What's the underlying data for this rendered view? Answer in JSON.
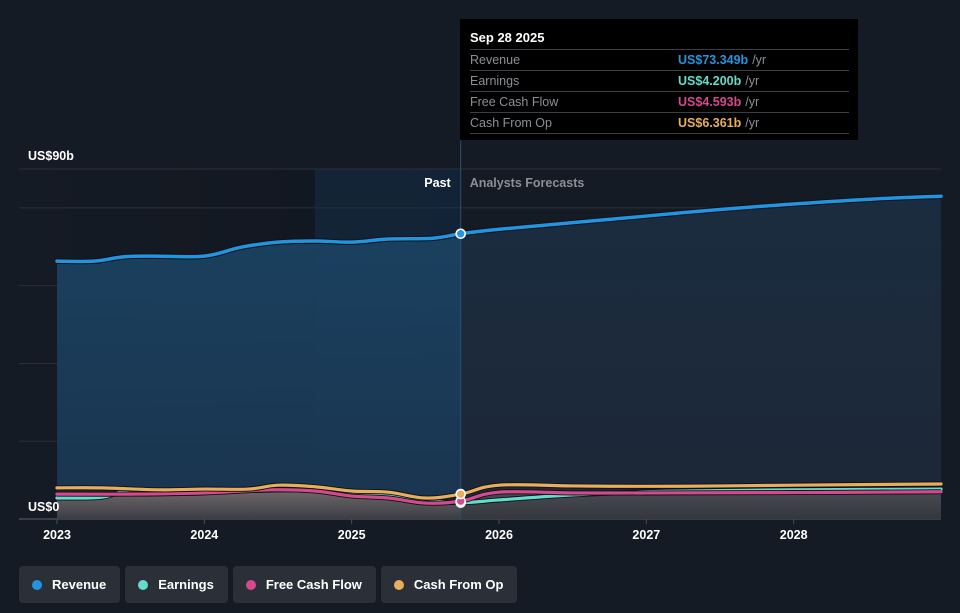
{
  "tooltip": {
    "date": "Sep 28 2025",
    "rows": [
      {
        "label": "Revenue",
        "value": "US$73.349b",
        "unit": "/yr",
        "color": "#2394df"
      },
      {
        "label": "Earnings",
        "value": "US$4.200b",
        "unit": "/yr",
        "color": "#63dccb"
      },
      {
        "label": "Free Cash Flow",
        "value": "US$4.593b",
        "unit": "/yr",
        "color": "#d44a8c"
      },
      {
        "label": "Cash From Op",
        "value": "US$6.361b",
        "unit": "/yr",
        "color": "#e8ae5c"
      }
    ]
  },
  "regions": {
    "past": "Past",
    "forecast": "Analysts Forecasts"
  },
  "chart_data": {
    "type": "area",
    "title": "",
    "xlabel": "",
    "ylabel": "",
    "y_tick_labels": [
      "US$0",
      "US$90b"
    ],
    "x_tick_labels": [
      "2023",
      "2024",
      "2025",
      "2026",
      "2027",
      "2028"
    ],
    "ylim": [
      0,
      90
    ],
    "xlim": [
      2023.0,
      2029.0
    ],
    "grid": true,
    "gridlines": [
      0,
      20,
      40,
      60,
      80,
      90
    ],
    "past_forecast_split": 2025.74,
    "highlight_range": [
      2024.75,
      2025.74
    ],
    "legend_position": "bottom-left",
    "units": "US$ billions",
    "series": [
      {
        "name": "Revenue",
        "color": "#2394df",
        "points": [
          [
            2023.0,
            66.3
          ],
          [
            2023.25,
            66.3
          ],
          [
            2023.45,
            67.4
          ],
          [
            2023.65,
            67.6
          ],
          [
            2024.0,
            67.6
          ],
          [
            2024.25,
            69.9
          ],
          [
            2024.5,
            71.2
          ],
          [
            2024.75,
            71.5
          ],
          [
            2025.0,
            71.2
          ],
          [
            2025.25,
            72.0
          ],
          [
            2025.55,
            72.2
          ],
          [
            2025.74,
            73.35
          ],
          [
            2026.0,
            74.5
          ],
          [
            2026.5,
            76.2
          ],
          [
            2027.0,
            77.9
          ],
          [
            2027.5,
            79.6
          ],
          [
            2028.0,
            81.0
          ],
          [
            2028.5,
            82.2
          ],
          [
            2029.0,
            83.0
          ]
        ]
      },
      {
        "name": "Earnings",
        "color": "#63dccb",
        "points": [
          [
            2023.0,
            5.4
          ],
          [
            2023.3,
            5.6
          ],
          [
            2023.5,
            7.2
          ],
          [
            2024.0,
            7.0
          ],
          [
            2024.5,
            7.5
          ],
          [
            2024.75,
            7.3
          ],
          [
            2025.0,
            6.4
          ],
          [
            2025.25,
            6.2
          ],
          [
            2025.5,
            4.9
          ],
          [
            2025.74,
            4.2
          ],
          [
            2026.0,
            4.9
          ],
          [
            2026.5,
            6.2
          ],
          [
            2027.0,
            7.0
          ],
          [
            2027.5,
            7.3
          ],
          [
            2028.0,
            7.5
          ],
          [
            2029.0,
            7.7
          ]
        ]
      },
      {
        "name": "Free Cash Flow",
        "color": "#d44a8c",
        "points": [
          [
            2023.0,
            6.4
          ],
          [
            2023.5,
            6.4
          ],
          [
            2024.0,
            6.7
          ],
          [
            2024.45,
            7.5
          ],
          [
            2024.75,
            7.2
          ],
          [
            2025.0,
            5.9
          ],
          [
            2025.25,
            5.4
          ],
          [
            2025.5,
            4.1
          ],
          [
            2025.74,
            4.6
          ],
          [
            2026.0,
            6.9
          ],
          [
            2026.5,
            6.7
          ],
          [
            2027.0,
            6.7
          ],
          [
            2028.0,
            6.8
          ],
          [
            2029.0,
            7.0
          ]
        ]
      },
      {
        "name": "Cash From Op",
        "color": "#e8ae5c",
        "points": [
          [
            2023.0,
            8.0
          ],
          [
            2023.3,
            8.0
          ],
          [
            2023.7,
            7.5
          ],
          [
            2024.0,
            7.7
          ],
          [
            2024.3,
            7.7
          ],
          [
            2024.5,
            8.7
          ],
          [
            2024.75,
            8.3
          ],
          [
            2025.0,
            7.2
          ],
          [
            2025.25,
            6.9
          ],
          [
            2025.5,
            5.4
          ],
          [
            2025.74,
            6.4
          ],
          [
            2026.0,
            8.7
          ],
          [
            2026.5,
            8.5
          ],
          [
            2027.0,
            8.4
          ],
          [
            2027.5,
            8.5
          ],
          [
            2028.0,
            8.7
          ],
          [
            2029.0,
            9.0
          ]
        ]
      }
    ]
  },
  "legend": [
    {
      "label": "Revenue",
      "color": "#2394df"
    },
    {
      "label": "Earnings",
      "color": "#63dccb"
    },
    {
      "label": "Free Cash Flow",
      "color": "#d44a8c"
    },
    {
      "label": "Cash From Op",
      "color": "#e8ae5c"
    }
  ]
}
